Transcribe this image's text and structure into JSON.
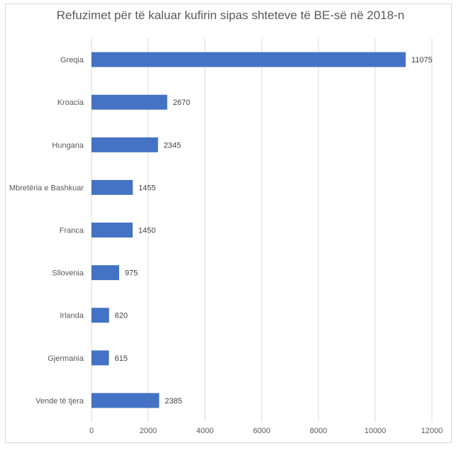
{
  "chart_data": {
    "type": "bar",
    "orientation": "horizontal",
    "title": "Refuzimet për të kaluar kufirin sipas shteteve të BE-së në 2018-n",
    "categories": [
      "Greqia",
      "Kroacia",
      "Hungaria",
      "Mbretëria e Bashkuar",
      "Franca",
      "Sllovenia",
      "Irlanda",
      "Gjermania",
      "Vende të tjera"
    ],
    "values": [
      11075,
      2670,
      2345,
      1455,
      1450,
      975,
      620,
      615,
      2385
    ],
    "xlim": [
      0,
      12000
    ],
    "xticks": [
      0,
      2000,
      4000,
      6000,
      8000,
      10000,
      12000
    ],
    "xlabel": "",
    "ylabel": "",
    "grid": true,
    "data_labels": true,
    "bar_color": "#4472C4",
    "grid_color": "#d9d9d9"
  }
}
